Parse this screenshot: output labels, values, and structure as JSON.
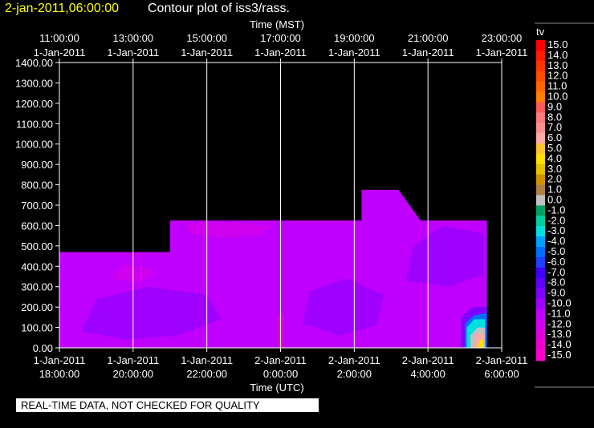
{
  "header": {
    "timestamp": "2-jan-2011,06:00:00",
    "title": "Contour plot of iss3/rass."
  },
  "notice": "REAL-TIME DATA, NOT CHECKED FOR QUALITY",
  "colors": {
    "background": "#000000",
    "timestamp_text": "#ffff00",
    "dominant_fill": "#cc00ff"
  },
  "chart_data": {
    "type": "heatmap",
    "top_axis_label": "Time (MST)",
    "bottom_axis_label": "Time (UTC)",
    "top_ticks": [
      {
        "time": "11:00:00",
        "date": "1-Jan-2011"
      },
      {
        "time": "13:00:00",
        "date": "1-Jan-2011"
      },
      {
        "time": "15:00:00",
        "date": "1-Jan-2011"
      },
      {
        "time": "17:00:00",
        "date": "1-Jan-2011"
      },
      {
        "time": "19:00:00",
        "date": "1-Jan-2011"
      },
      {
        "time": "21:00:00",
        "date": "1-Jan-2011"
      },
      {
        "time": "23:00:00",
        "date": "1-Jan-2011"
      }
    ],
    "bottom_ticks": [
      {
        "date": "1-Jan-2011",
        "time": "18:00:00"
      },
      {
        "date": "1-Jan-2011",
        "time": "20:00:00"
      },
      {
        "date": "1-Jan-2011",
        "time": "22:00:00"
      },
      {
        "date": "2-Jan-2011",
        "time": "0:00:00"
      },
      {
        "date": "2-Jan-2011",
        "time": "2:00:00"
      },
      {
        "date": "2-Jan-2011",
        "time": "4:00:00"
      },
      {
        "date": "2-Jan-2011",
        "time": "6:00:00"
      }
    ],
    "y_ticks": [
      "1400.00",
      "1300.00",
      "1200.00",
      "1100.00",
      "1000.00",
      "900.00",
      "800.00",
      "700.00",
      "600.00",
      "500.00",
      "400.00",
      "300.00",
      "200.00",
      "100.00",
      "0.00"
    ],
    "ylim": [
      0,
      1400
    ],
    "x_range_utc_hours": [
      18,
      30
    ],
    "grid": true,
    "legend": {
      "title": "tv",
      "position": "right",
      "levels": [
        {
          "label": "15.0",
          "color": "#ff0000"
        },
        {
          "label": "14.0",
          "color": "#ff1a00"
        },
        {
          "label": "13.0",
          "color": "#ff3300"
        },
        {
          "label": "12.0",
          "color": "#ff4d00"
        },
        {
          "label": "11.0",
          "color": "#ff6600"
        },
        {
          "label": "10.0",
          "color": "#ff8000"
        },
        {
          "label": "9.0",
          "color": "#ff5a5a"
        },
        {
          "label": "8.0",
          "color": "#ff7a7a"
        },
        {
          "label": "7.0",
          "color": "#ff9090"
        },
        {
          "label": "6.0",
          "color": "#ffa8a8"
        },
        {
          "label": "5.0",
          "color": "#ffc030"
        },
        {
          "label": "4.0",
          "color": "#ffe000"
        },
        {
          "label": "3.0",
          "color": "#e6c000"
        },
        {
          "label": "2.0",
          "color": "#d09000"
        },
        {
          "label": "1.0",
          "color": "#b08040"
        },
        {
          "label": "0.0",
          "color": "#c0c0c0"
        },
        {
          "label": "-1.0",
          "color": "#00a060"
        },
        {
          "label": "-2.0",
          "color": "#00d0a0"
        },
        {
          "label": "-3.0",
          "color": "#00e0e0"
        },
        {
          "label": "-4.0",
          "color": "#00a0ff"
        },
        {
          "label": "-5.0",
          "color": "#0070ff"
        },
        {
          "label": "-6.0",
          "color": "#2040ff"
        },
        {
          "label": "-7.0",
          "color": "#4000ff"
        },
        {
          "label": "-8.0",
          "color": "#6000ff"
        },
        {
          "label": "-9.0",
          "color": "#8000ff"
        },
        {
          "label": "-10.0",
          "color": "#a000ff"
        },
        {
          "label": "-11.0",
          "color": "#c000ff"
        },
        {
          "label": "-12.0",
          "color": "#d000f0"
        },
        {
          "label": "-13.0",
          "color": "#e000e0"
        },
        {
          "label": "-14.0",
          "color": "#f000d0"
        },
        {
          "label": "-15.0",
          "color": "#ff00cc"
        }
      ]
    },
    "data_envelope": [
      [
        18.0,
        0
      ],
      [
        18.0,
        470
      ],
      [
        21.0,
        470
      ],
      [
        21.0,
        625
      ],
      [
        26.2,
        625
      ],
      [
        26.2,
        775
      ],
      [
        27.2,
        775
      ],
      [
        27.8,
        625
      ],
      [
        29.6,
        625
      ],
      [
        29.6,
        0
      ]
    ],
    "regions": [
      {
        "value": -11.0,
        "polygon": [
          [
            18.0,
            0
          ],
          [
            18.0,
            470
          ],
          [
            21.0,
            470
          ],
          [
            21.0,
            625
          ],
          [
            26.2,
            625
          ],
          [
            26.2,
            775
          ],
          [
            27.2,
            775
          ],
          [
            27.8,
            625
          ],
          [
            29.6,
            625
          ],
          [
            29.6,
            0
          ]
        ]
      },
      {
        "value": -10.0,
        "polygon": [
          [
            18.6,
            80
          ],
          [
            19.8,
            40
          ],
          [
            21.2,
            60
          ],
          [
            22.4,
            140
          ],
          [
            22.0,
            260
          ],
          [
            20.4,
            300
          ],
          [
            19.0,
            240
          ]
        ]
      },
      {
        "value": -10.0,
        "polygon": [
          [
            24.6,
            120
          ],
          [
            25.6,
            60
          ],
          [
            26.6,
            110
          ],
          [
            26.8,
            260
          ],
          [
            25.8,
            340
          ],
          [
            24.8,
            280
          ]
        ]
      },
      {
        "value": -10.0,
        "polygon": [
          [
            27.4,
            330
          ],
          [
            28.6,
            300
          ],
          [
            29.5,
            360
          ],
          [
            29.5,
            560
          ],
          [
            28.4,
            600
          ],
          [
            27.6,
            500
          ]
        ]
      },
      {
        "value": -12.0,
        "polygon": [
          [
            21.6,
            560
          ],
          [
            22.4,
            540
          ],
          [
            23.4,
            555
          ],
          [
            23.8,
            600
          ],
          [
            22.2,
            620
          ],
          [
            21.4,
            605
          ]
        ]
      },
      {
        "value": -12.0,
        "polygon": [
          [
            19.4,
            340
          ],
          [
            20.2,
            320
          ],
          [
            20.6,
            380
          ],
          [
            19.8,
            410
          ]
        ]
      },
      {
        "value": -13.0,
        "polygon": [
          [
            23.92,
            0
          ],
          [
            24.1,
            0
          ],
          [
            24.1,
            160
          ],
          [
            23.92,
            160
          ]
        ]
      },
      {
        "value": -9.0,
        "polygon": [
          [
            28.9,
            0
          ],
          [
            29.6,
            0
          ],
          [
            29.6,
            200
          ],
          [
            29.2,
            200
          ],
          [
            28.9,
            150
          ]
        ]
      },
      {
        "value": -5.0,
        "polygon": [
          [
            29.0,
            0
          ],
          [
            29.6,
            0
          ],
          [
            29.6,
            170
          ],
          [
            29.25,
            160
          ],
          [
            29.0,
            120
          ]
        ]
      },
      {
        "value": -3.0,
        "polygon": [
          [
            29.05,
            0
          ],
          [
            29.55,
            0
          ],
          [
            29.55,
            140
          ],
          [
            29.25,
            140
          ],
          [
            29.05,
            100
          ]
        ]
      },
      {
        "value": 0.0,
        "polygon": [
          [
            29.15,
            0
          ],
          [
            29.55,
            0
          ],
          [
            29.55,
            100
          ],
          [
            29.35,
            100
          ],
          [
            29.15,
            60
          ]
        ]
      },
      {
        "value": 6.0,
        "polygon": [
          [
            29.25,
            0
          ],
          [
            29.5,
            0
          ],
          [
            29.5,
            70
          ],
          [
            29.3,
            70
          ]
        ]
      },
      {
        "value": 4.0,
        "polygon": [
          [
            29.35,
            0
          ],
          [
            29.5,
            0
          ],
          [
            29.5,
            40
          ],
          [
            29.4,
            40
          ]
        ]
      }
    ]
  }
}
